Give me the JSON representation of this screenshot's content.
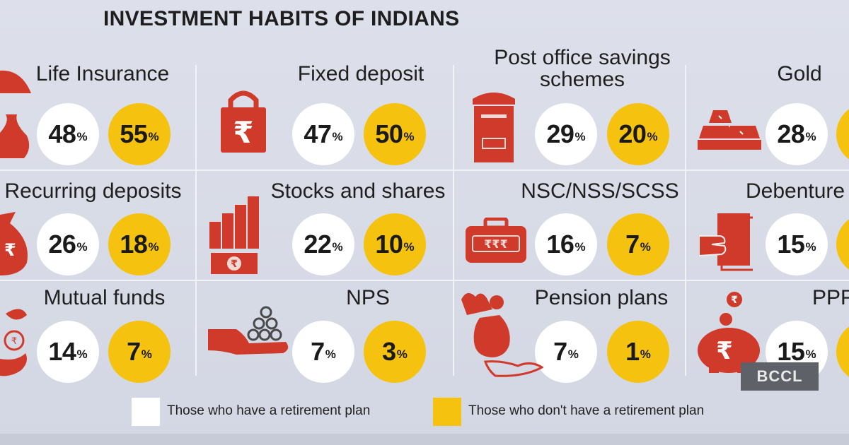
{
  "title": "INVESTMENT HABITS OF INDIANS",
  "watermark": "BCCL",
  "pct_sign": "%",
  "legend": {
    "with_plan": "Those who have a retirement plan",
    "without_plan": "Those who don't have a retirement plan"
  },
  "colors": {
    "with_plan": "#ffffff",
    "without_plan": "#f6c210",
    "icon": "#cf3a2a",
    "background": "#d7dbe6"
  },
  "chart_data": {
    "type": "table",
    "title": "INVESTMENT HABITS OF INDIANS",
    "series": [
      {
        "name": "Those who have a retirement plan"
      },
      {
        "name": "Those who don't have a retirement plan"
      }
    ],
    "unit": "%",
    "items": [
      {
        "label": "Life Insurance",
        "icon": "umbrella-money-bag-icon",
        "with_plan": 48,
        "without_plan": 55
      },
      {
        "label": "Fixed deposit",
        "icon": "rupee-padlock-icon",
        "with_plan": 47,
        "without_plan": 50
      },
      {
        "label": "Post office savings schemes",
        "icon": "post-box-icon",
        "with_plan": 29,
        "without_plan": 20
      },
      {
        "label": "Gold",
        "icon": "gold-bars-icon",
        "with_plan": 28,
        "without_plan": null
      },
      {
        "label": "Recurring deposits",
        "icon": "rupee-bag-icon",
        "with_plan": 26,
        "without_plan": 18
      },
      {
        "label": "Stocks and shares",
        "icon": "rising-bars-icon",
        "with_plan": 22,
        "without_plan": 10
      },
      {
        "label": "NSC/NSS/SCSS",
        "icon": "rupee-briefcase-icon",
        "with_plan": 16,
        "without_plan": 7
      },
      {
        "label": "Debenture",
        "icon": "hand-document-icon",
        "with_plan": 15,
        "without_plan": null
      },
      {
        "label": "Mutual funds",
        "icon": "hand-plant-icon",
        "with_plan": 14,
        "without_plan": 7
      },
      {
        "label": "NPS",
        "icon": "hand-coins-icon",
        "with_plan": 7,
        "without_plan": 3
      },
      {
        "label": "Pension plans",
        "icon": "hand-money-bag-icon",
        "with_plan": 7,
        "without_plan": 1
      },
      {
        "label": "PPF",
        "icon": "piggy-bank-icon",
        "with_plan": 15,
        "without_plan": null
      }
    ]
  }
}
